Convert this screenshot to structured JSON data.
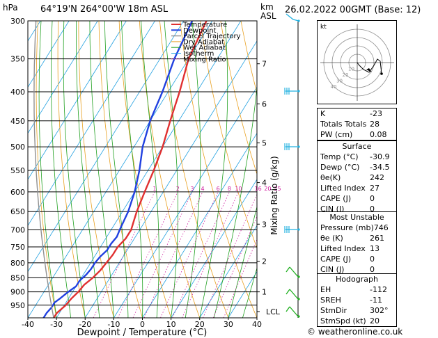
{
  "header": {
    "hpa_label": "hPa",
    "location": "64°19'N  264°00'W  18m  ASL",
    "km_label": "km",
    "asl_label": "ASL",
    "datetime": "26.02.2022  00GMT  (Base: 12)"
  },
  "colors": {
    "temperature": "#e03030",
    "dewpoint": "#2040e0",
    "parcel": "#909090",
    "dry_adiabat": "#e8a020",
    "wet_adiabat": "#20a020",
    "isotherm": "#20a0e0",
    "mixing_ratio": "#d020a0",
    "wind": "#20b0e0"
  },
  "chart_data": {
    "type": "line",
    "xlabel": "Dewpoint / Temperature (°C)",
    "ylabel_right": "Mixing Ratio (g/kg)",
    "x_ticks": [
      "-40",
      "-30",
      "-20",
      "-10",
      "0",
      "10",
      "20",
      "30",
      "40"
    ],
    "xlim": [
      -40,
      40
    ],
    "pressure_levels": [
      "300",
      "350",
      "400",
      "450",
      "500",
      "550",
      "600",
      "650",
      "700",
      "750",
      "800",
      "850",
      "900",
      "950"
    ],
    "ylim_hpa": [
      1000,
      300
    ],
    "km_ticks": [
      "7",
      "6",
      "5",
      "4",
      "3",
      "2",
      "1",
      "LCL"
    ],
    "legend": [
      "Temperature",
      "Dewpoint",
      "Parcel Trajectory",
      "Dry Adiabat",
      "Wet Adiabat",
      "Isotherm",
      "Mixing Ratio"
    ],
    "mixing_ratio_labels": [
      "1",
      "2",
      "3",
      "4",
      "6",
      "8",
      "10",
      "16",
      "20",
      "25"
    ],
    "series": [
      {
        "name": "Temperature",
        "points": [
          [
            1000,
            -31
          ],
          [
            980,
            -30.9
          ],
          [
            950,
            -29.5
          ],
          [
            925,
            -29
          ],
          [
            900,
            -28
          ],
          [
            875,
            -27.5
          ],
          [
            850,
            -26
          ],
          [
            825,
            -25
          ],
          [
            800,
            -24.5
          ],
          [
            775,
            -24
          ],
          [
            750,
            -24
          ],
          [
            725,
            -23
          ],
          [
            700,
            -23
          ],
          [
            675,
            -24
          ],
          [
            650,
            -25
          ],
          [
            600,
            -26.5
          ],
          [
            550,
            -28
          ],
          [
            500,
            -30
          ],
          [
            450,
            -33
          ],
          [
            400,
            -36
          ],
          [
            350,
            -40
          ],
          [
            300,
            -42
          ]
        ]
      },
      {
        "name": "Dewpoint",
        "points": [
          [
            1000,
            -34.5
          ],
          [
            980,
            -34.5
          ],
          [
            960,
            -34
          ],
          [
            940,
            -34
          ],
          [
            925,
            -33
          ],
          [
            900,
            -31.5
          ],
          [
            880,
            -30
          ],
          [
            860,
            -30
          ],
          [
            840,
            -29
          ],
          [
            820,
            -28.5
          ],
          [
            800,
            -28.5
          ],
          [
            780,
            -28
          ],
          [
            760,
            -27
          ],
          [
            740,
            -27
          ],
          [
            720,
            -26.5
          ],
          [
            700,
            -27
          ],
          [
            650,
            -28
          ],
          [
            600,
            -30
          ],
          [
            550,
            -33
          ],
          [
            500,
            -37
          ],
          [
            450,
            -40
          ],
          [
            400,
            -42
          ],
          [
            350,
            -45
          ],
          [
            300,
            -47
          ]
        ]
      }
    ]
  },
  "hodograph": {
    "label": "kt",
    "ring_labels": [
      "10",
      "20",
      "30",
      "40"
    ]
  },
  "indices": [
    {
      "label": "K",
      "value": "-23"
    },
    {
      "label": "Totals Totals",
      "value": "28"
    },
    {
      "label": "PW (cm)",
      "value": "0.08"
    }
  ],
  "surface": {
    "title": "Surface",
    "rows": [
      {
        "label": "Temp (°C)",
        "value": "-30.9"
      },
      {
        "label": "Dewp (°C)",
        "value": "-34.5"
      },
      {
        "label": "θe(K)",
        "value": "242"
      },
      {
        "label": "Lifted Index",
        "value": "27"
      },
      {
        "label": "CAPE (J)",
        "value": "0"
      },
      {
        "label": "CIN (J)",
        "value": "0"
      }
    ]
  },
  "most_unstable": {
    "title": "Most Unstable",
    "rows": [
      {
        "label": "Pressure (mb)",
        "value": "746"
      },
      {
        "label": "θe (K)",
        "value": "261"
      },
      {
        "label": "Lifted Index",
        "value": "13"
      },
      {
        "label": "CAPE (J)",
        "value": "0"
      },
      {
        "label": "CIN (J)",
        "value": "0"
      }
    ]
  },
  "hodograph_table": {
    "title": "Hodograph",
    "rows": [
      {
        "label": "EH",
        "value": "-112"
      },
      {
        "label": "SREH",
        "value": "-11"
      },
      {
        "label": "StmDir",
        "value": "302°"
      },
      {
        "label": "StmSpd (kt)",
        "value": "20"
      }
    ]
  },
  "credit": "© weatheronline.co.uk"
}
